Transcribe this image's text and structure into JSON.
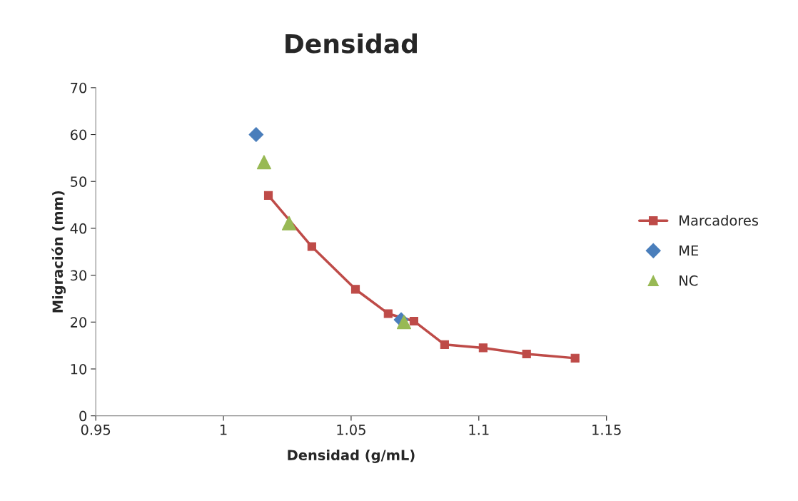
{
  "chart_data": {
    "type": "line",
    "title": "Densidad",
    "xlabel": "Densidad (g/mL)",
    "ylabel": "Migración (mm)",
    "xlim": [
      0.95,
      1.15
    ],
    "xticks": [
      0.95,
      1,
      1.05,
      1.1,
      1.15
    ],
    "ylim": [
      0,
      70
    ],
    "yticks": [
      0,
      10,
      20,
      30,
      40,
      50,
      60,
      70
    ],
    "grid": false,
    "legend": "right",
    "series": [
      {
        "name": "Marcadores",
        "color": "#be4b48",
        "marker": "square",
        "line_style": "solid",
        "x": [
          1.0176,
          1.0346,
          1.0517,
          1.0645,
          1.0746,
          1.0866,
          1.1017,
          1.1187,
          1.1377
        ],
        "values": [
          47.0,
          36.1,
          27.0,
          21.8,
          20.2,
          15.2,
          14.5,
          13.2,
          12.3
        ]
      },
      {
        "name": "ME",
        "type": "scatter",
        "color": "#4a7ebb",
        "marker": "diamond",
        "x": [
          1.0128,
          1.0696
        ],
        "values": [
          60.0,
          20.5
        ]
      },
      {
        "name": "NC",
        "type": "scatter",
        "color": "#98b954",
        "marker": "triangle",
        "x": [
          1.0159,
          1.0257,
          1.0707
        ],
        "values": [
          54.1,
          41.1,
          20.0
        ]
      }
    ]
  }
}
